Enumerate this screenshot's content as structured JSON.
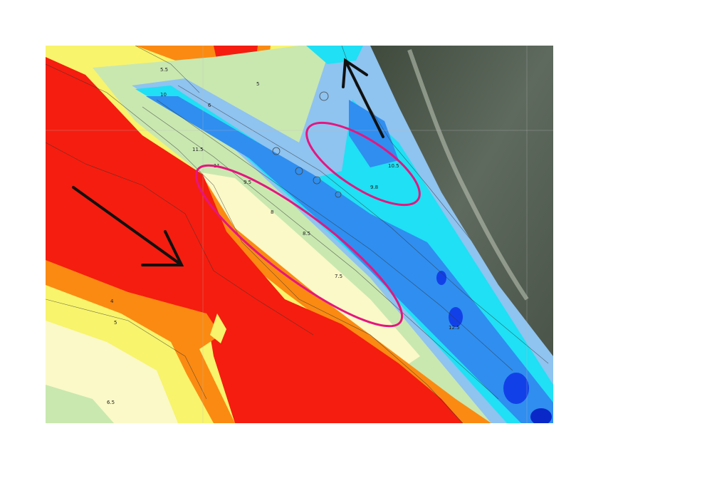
{
  "map": {
    "type": "bathymetric contour map over satellite image",
    "colors": {
      "shallow_red": "#f51d0f",
      "orange": "#fb8a12",
      "yellow": "#f8f46c",
      "pale": "#fbf9c8",
      "pale_green": "#c9e8b0",
      "light_blue": "#8fc3f0",
      "cyan": "#1fe0f4",
      "blue": "#2f8ef0",
      "deep_blue": "#1240e8",
      "annotation_ellipse": "#e6157f",
      "annotation_arrow": "#111111"
    },
    "contour_labels": [
      "5.5",
      "6",
      "5",
      "10",
      "11.5",
      "11",
      "9.5",
      "8",
      "10.5",
      "9.8",
      "6.5",
      "4",
      "5",
      "12.5",
      "7.5",
      "8.5"
    ],
    "annotations": {
      "arrows": [
        "south-east arrow on shallow area",
        "north-west arrow in channel"
      ],
      "ellipses": 2
    }
  }
}
